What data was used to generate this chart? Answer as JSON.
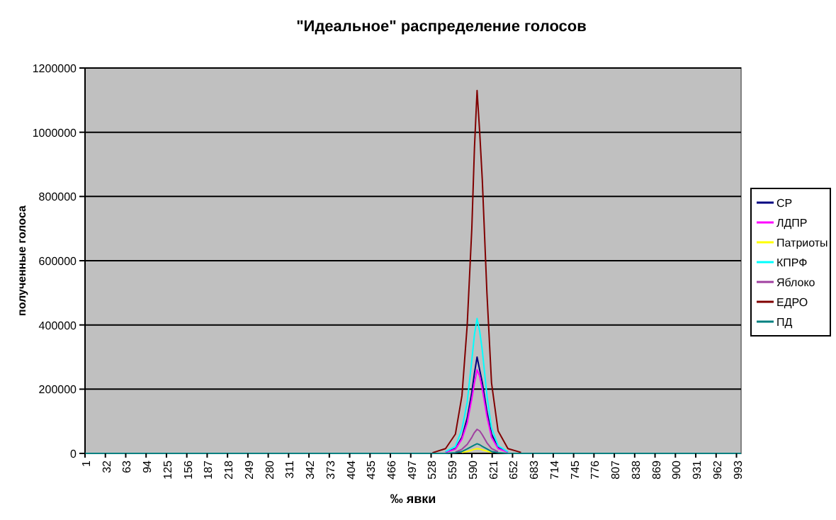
{
  "chart_data": {
    "type": "line",
    "title": "\"Идеальное\" распределение голосов",
    "xlabel": "‰ явки",
    "ylabel": "полученные голоса",
    "x": [
      1,
      500,
      530,
      550,
      565,
      575,
      583,
      590,
      594,
      598,
      602,
      606,
      613,
      620,
      630,
      645,
      665,
      690,
      1000
    ],
    "xlim": [
      1,
      1000
    ],
    "xticks": [
      1,
      32,
      63,
      94,
      125,
      156,
      187,
      218,
      249,
      280,
      311,
      342,
      373,
      404,
      435,
      466,
      497,
      528,
      559,
      590,
      621,
      652,
      683,
      714,
      745,
      776,
      807,
      838,
      869,
      900,
      931,
      962,
      993
    ],
    "ylim": [
      0,
      1200000
    ],
    "yticks": [
      0,
      200000,
      400000,
      600000,
      800000,
      1000000,
      1200000
    ],
    "grid": "y",
    "legend": "right",
    "marker": "none",
    "line_style": "solid",
    "series": [
      {
        "name": "СР",
        "color": "#000080",
        "values": [
          null,
          null,
          null,
          4000,
          15000,
          50000,
          110000,
          190000,
          250000,
          300000,
          260000,
          220000,
          130000,
          60000,
          18000,
          4000,
          null,
          null,
          null
        ]
      },
      {
        "name": "ЛДПР",
        "color": "#ff00ff",
        "values": [
          null,
          null,
          null,
          4000,
          13000,
          45000,
          95000,
          170000,
          220000,
          260000,
          240000,
          200000,
          115000,
          50000,
          15000,
          4000,
          null,
          null,
          null
        ]
      },
      {
        "name": "Патриоты",
        "color": "#ffff00",
        "values": [
          null,
          null,
          null,
          null,
          null,
          3000,
          6000,
          10000,
          13000,
          15000,
          14000,
          11000,
          7000,
          3000,
          null,
          null,
          null,
          null,
          null
        ]
      },
      {
        "name": "КПРФ",
        "color": "#00ffff",
        "values": [
          null,
          null,
          null,
          6000,
          22000,
          75000,
          160000,
          290000,
          370000,
          420000,
          380000,
          320000,
          180000,
          80000,
          24000,
          5000,
          null,
          null,
          null
        ]
      },
      {
        "name": "Яблоко",
        "color": "#a040a0",
        "values": [
          null,
          null,
          null,
          null,
          4000,
          13000,
          28000,
          50000,
          65000,
          75000,
          70000,
          58000,
          33000,
          15000,
          5000,
          null,
          null,
          null,
          null
        ]
      },
      {
        "name": "ЕДРО",
        "color": "#800000",
        "values": [
          null,
          null,
          2000,
          15000,
          60000,
          180000,
          400000,
          700000,
          950000,
          1130000,
          1000000,
          850000,
          500000,
          220000,
          70000,
          15000,
          3000,
          null,
          null
        ]
      },
      {
        "name": "ПД",
        "color": "#008080",
        "values": [
          0,
          0,
          0,
          0,
          2000,
          6000,
          14000,
          22000,
          26000,
          30000,
          27000,
          22000,
          14000,
          6000,
          2000,
          0,
          0,
          0,
          0
        ]
      }
    ]
  }
}
